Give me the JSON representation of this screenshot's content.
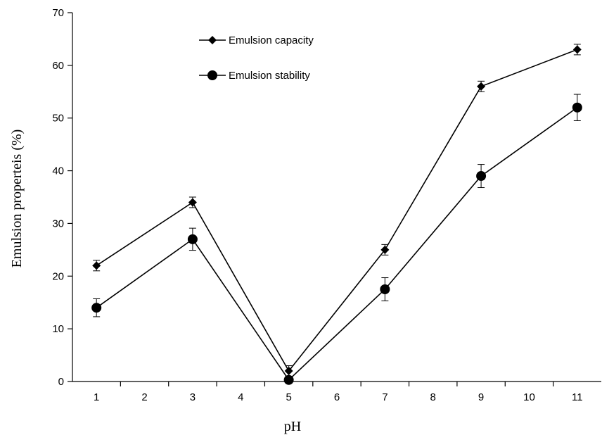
{
  "chart_data": {
    "type": "line",
    "title": "",
    "xlabel": "pH",
    "ylabel": "Emulsion properteis (%)",
    "xlim": [
      0.5,
      11.5
    ],
    "ylim": [
      0,
      70
    ],
    "x_ticks": [
      1,
      2,
      3,
      4,
      5,
      6,
      7,
      8,
      9,
      10,
      11
    ],
    "y_ticks": [
      0,
      10,
      20,
      30,
      40,
      50,
      60,
      70
    ],
    "grid": false,
    "legend_position": "top-left",
    "series": [
      {
        "name": "Emulsion capacity",
        "marker": "diamond",
        "x": [
          1,
          3,
          5,
          7,
          9,
          11
        ],
        "values": [
          22,
          34,
          2,
          25,
          56,
          63
        ],
        "error": [
          1,
          1,
          1,
          1,
          1,
          1
        ]
      },
      {
        "name": "Emulsion stability",
        "marker": "circle",
        "x": [
          1,
          3,
          5,
          7,
          9,
          11
        ],
        "values": [
          14,
          27,
          0.3,
          17.5,
          39,
          52
        ],
        "error": [
          1.7,
          2.1,
          0.5,
          2.2,
          2.2,
          2.5
        ]
      }
    ]
  }
}
